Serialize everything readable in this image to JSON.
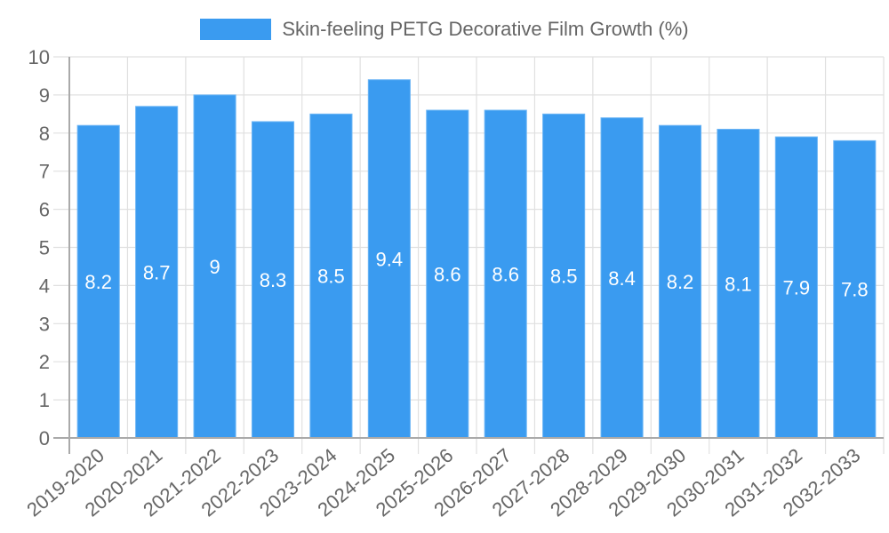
{
  "legend": {
    "label": "Skin-feeling PETG Decorative Film Growth (%)",
    "color": "#3a9bf0"
  },
  "chart_data": {
    "type": "bar",
    "title": "",
    "xlabel": "",
    "ylabel": "",
    "ylim": [
      0,
      10
    ],
    "yticks": [
      0,
      1,
      2,
      3,
      4,
      5,
      6,
      7,
      8,
      9,
      10
    ],
    "grid": true,
    "legend_position": "top",
    "categories": [
      "2019-2020",
      "2020-2021",
      "2021-2022",
      "2022-2023",
      "2023-2024",
      "2024-2025",
      "2025-2026",
      "2026-2027",
      "2027-2028",
      "2028-2029",
      "2029-2030",
      "2030-2031",
      "2031-2032",
      "2032-2033"
    ],
    "series": [
      {
        "name": "Skin-feeling PETG Decorative Film Growth (%)",
        "color": "#3a9bf0",
        "values": [
          8.2,
          8.7,
          9,
          8.3,
          8.5,
          9.4,
          8.6,
          8.6,
          8.5,
          8.4,
          8.2,
          8.1,
          7.9,
          7.8
        ],
        "data_labels": [
          "8.2",
          "8.7",
          "9",
          "8.3",
          "8.5",
          "9.4",
          "8.6",
          "8.6",
          "8.5",
          "8.4",
          "8.2",
          "8.1",
          "7.9",
          "7.8"
        ]
      }
    ]
  }
}
